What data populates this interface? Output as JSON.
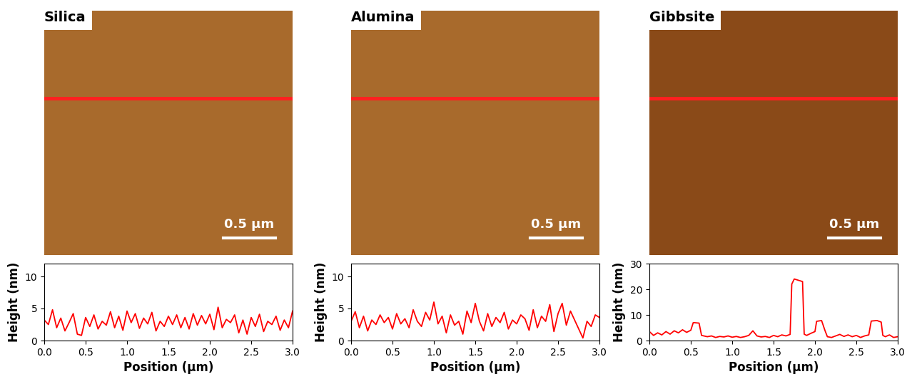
{
  "chart_data": [
    {
      "type": "line",
      "title": "Silica",
      "annotations": [
        "0.5 μm"
      ],
      "x_label": "Position (μm)",
      "y_label": "Height (nm)",
      "color": "#ff0000",
      "grid": false,
      "x": [
        0.0,
        0.05,
        0.1,
        0.15,
        0.2,
        0.25,
        0.3,
        0.35,
        0.4,
        0.45,
        0.5,
        0.55,
        0.6,
        0.65,
        0.7,
        0.75,
        0.8,
        0.85,
        0.9,
        0.95,
        1.0,
        1.05,
        1.1,
        1.15,
        1.2,
        1.25,
        1.3,
        1.35,
        1.4,
        1.45,
        1.5,
        1.55,
        1.6,
        1.65,
        1.7,
        1.75,
        1.8,
        1.85,
        1.9,
        1.95,
        2.0,
        2.05,
        2.1,
        2.15,
        2.2,
        2.25,
        2.3,
        2.35,
        2.4,
        2.45,
        2.5,
        2.55,
        2.6,
        2.65,
        2.7,
        2.75,
        2.8,
        2.85,
        2.9,
        2.95,
        3.0
      ],
      "values": [
        3.2,
        2.5,
        4.8,
        2.0,
        3.5,
        1.5,
        2.8,
        4.2,
        1.0,
        0.8,
        3.6,
        2.2,
        4.0,
        1.8,
        3.0,
        2.4,
        4.5,
        2.0,
        3.8,
        1.6,
        4.6,
        2.8,
        4.2,
        1.9,
        3.5,
        2.6,
        4.4,
        1.5,
        3.0,
        2.2,
        3.8,
        2.5,
        4.0,
        2.0,
        3.6,
        1.8,
        4.2,
        2.4,
        3.9,
        2.6,
        4.1,
        1.7,
        5.2,
        2.0,
        3.3,
        2.8,
        4.0,
        1.2,
        3.2,
        1.0,
        3.6,
        2.2,
        4.1,
        1.4,
        3.0,
        2.5,
        3.8,
        1.6,
        3.2,
        2.0,
        4.6
      ],
      "xlim": [
        0.0,
        3.0
      ],
      "xticks": [
        0.0,
        0.5,
        1.0,
        1.5,
        2.0,
        2.5,
        3.0
      ],
      "ylim": [
        0,
        12
      ],
      "yticks": [
        0,
        5,
        10
      ]
    },
    {
      "type": "line",
      "title": "Alumina",
      "annotations": [
        "0.5 μm"
      ],
      "x_label": "Position (μm)",
      "y_label": "Height (nm)",
      "color": "#ff0000",
      "grid": false,
      "x": [
        0.0,
        0.05,
        0.1,
        0.15,
        0.2,
        0.25,
        0.3,
        0.35,
        0.4,
        0.45,
        0.5,
        0.55,
        0.6,
        0.65,
        0.7,
        0.75,
        0.8,
        0.85,
        0.9,
        0.95,
        1.0,
        1.05,
        1.1,
        1.15,
        1.2,
        1.25,
        1.3,
        1.35,
        1.4,
        1.45,
        1.5,
        1.55,
        1.6,
        1.65,
        1.7,
        1.75,
        1.8,
        1.85,
        1.9,
        1.95,
        2.0,
        2.05,
        2.1,
        2.15,
        2.2,
        2.25,
        2.3,
        2.35,
        2.4,
        2.45,
        2.5,
        2.55,
        2.6,
        2.65,
        2.7,
        2.75,
        2.8,
        2.85,
        2.9,
        2.95,
        3.0
      ],
      "values": [
        3.0,
        4.5,
        2.0,
        3.8,
        1.5,
        3.2,
        2.5,
        4.0,
        2.8,
        3.6,
        1.8,
        4.2,
        2.6,
        3.4,
        2.0,
        4.8,
        3.0,
        2.2,
        4.4,
        3.2,
        6.0,
        2.6,
        3.8,
        1.2,
        4.0,
        2.4,
        3.0,
        1.0,
        4.6,
        2.8,
        5.8,
        3.0,
        1.5,
        4.2,
        2.2,
        3.6,
        2.8,
        4.4,
        1.8,
        3.2,
        2.6,
        4.0,
        3.4,
        1.6,
        4.8,
        2.0,
        3.8,
        3.0,
        5.6,
        1.4,
        4.2,
        5.8,
        2.4,
        4.6,
        3.2,
        1.8,
        0.4,
        3.0,
        2.2,
        4.0,
        3.6
      ],
      "xlim": [
        0.0,
        3.0
      ],
      "xticks": [
        0.0,
        0.5,
        1.0,
        1.5,
        2.0,
        2.5,
        3.0
      ],
      "ylim": [
        0,
        12
      ],
      "yticks": [
        0,
        5,
        10
      ]
    },
    {
      "type": "line",
      "title": "Gibbsite",
      "annotations": [
        "0.5 μm"
      ],
      "x_label": "Position (μm)",
      "y_label": "Height (nm)",
      "color": "#ff0000",
      "grid": false,
      "x": [
        0.0,
        0.05,
        0.1,
        0.15,
        0.2,
        0.25,
        0.3,
        0.35,
        0.4,
        0.45,
        0.5,
        0.53,
        0.6,
        0.63,
        0.7,
        0.75,
        0.8,
        0.85,
        0.9,
        0.95,
        1.0,
        1.05,
        1.1,
        1.15,
        1.2,
        1.25,
        1.3,
        1.35,
        1.4,
        1.45,
        1.5,
        1.55,
        1.6,
        1.65,
        1.7,
        1.72,
        1.75,
        1.8,
        1.85,
        1.87,
        1.9,
        1.95,
        2.0,
        2.02,
        2.08,
        2.12,
        2.15,
        2.2,
        2.25,
        2.3,
        2.35,
        2.4,
        2.45,
        2.5,
        2.55,
        2.6,
        2.65,
        2.68,
        2.75,
        2.8,
        2.82,
        2.85,
        2.9,
        2.95,
        3.0
      ],
      "values": [
        3.5,
        2.0,
        3.0,
        2.2,
        3.5,
        2.5,
        3.8,
        3.0,
        4.2,
        3.2,
        4.0,
        7.0,
        6.8,
        2.0,
        1.5,
        1.8,
        1.2,
        1.6,
        1.4,
        1.8,
        1.3,
        1.6,
        1.2,
        1.5,
        2.0,
        3.8,
        1.8,
        1.4,
        1.6,
        1.2,
        2.0,
        1.5,
        2.2,
        1.8,
        2.4,
        22.0,
        24.0,
        23.5,
        23.0,
        2.5,
        2.0,
        2.8,
        3.5,
        7.5,
        7.8,
        4.0,
        1.5,
        1.2,
        1.8,
        2.4,
        1.6,
        2.2,
        1.5,
        2.0,
        1.2,
        1.8,
        2.2,
        7.6,
        7.8,
        7.2,
        2.0,
        1.5,
        2.2,
        1.2,
        1.5
      ],
      "xlim": [
        0.0,
        3.0
      ],
      "xticks": [
        0.0,
        0.5,
        1.0,
        1.5,
        2.0,
        2.5,
        3.0
      ],
      "ylim": [
        0,
        30
      ],
      "yticks": [
        0,
        10,
        20,
        30
      ]
    }
  ]
}
